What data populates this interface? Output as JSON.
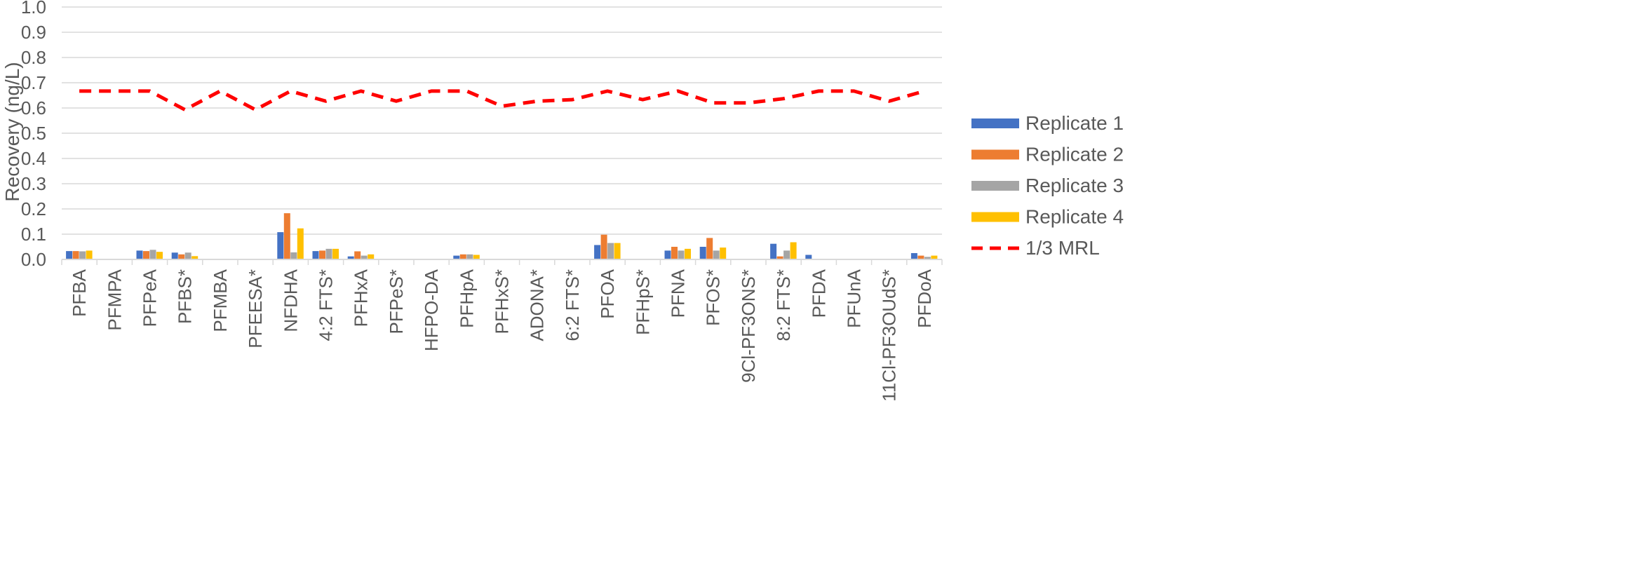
{
  "chart_data": {
    "type": "bar",
    "title": "",
    "xlabel": "",
    "ylabel": "Recovery (ng/L)",
    "ylim": [
      0,
      1.0
    ],
    "yticks": [
      "0.0",
      "0.1",
      "0.2",
      "0.3",
      "0.4",
      "0.5",
      "0.6",
      "0.7",
      "0.8",
      "0.9",
      "1.0"
    ],
    "grid": true,
    "legend_position": "right",
    "categories": [
      "PFBA",
      "PFMPA",
      "PFPeA",
      "PFBS*",
      "PFMBA",
      "PFEESA*",
      "NFDHA",
      "4:2 FTS*",
      "PFHxA",
      "PFPeS*",
      "HFPO-DA",
      "PFHpA",
      "PFHxS*",
      "ADONA*",
      "6:2 FTS*",
      "PFOA",
      "PFHpS*",
      "PFNA",
      "PFOS*",
      "9Cl-PF3ONS*",
      "8:2 FTS*",
      "PFDA",
      "PFUnA",
      "11Cl-PF3OUdS*",
      "PFDoA"
    ],
    "series": [
      {
        "name": "Replicate 1",
        "color": "#4472C4",
        "values": [
          0.033,
          0,
          0.035,
          0.027,
          0,
          0,
          0.108,
          0.033,
          0.012,
          0,
          0,
          0.015,
          0,
          0,
          0,
          0.057,
          0,
          0.035,
          0.05,
          0,
          0.062,
          0.018,
          0,
          0,
          0.025
        ]
      },
      {
        "name": "Replicate 2",
        "color": "#ED7D31",
        "values": [
          0.033,
          0,
          0.033,
          0.02,
          0,
          0,
          0.183,
          0.035,
          0.032,
          0,
          0,
          0.02,
          0,
          0,
          0,
          0.098,
          0,
          0.05,
          0.085,
          0,
          0.012,
          0,
          0,
          0,
          0.015
        ]
      },
      {
        "name": "Replicate 3",
        "color": "#A5A5A5",
        "values": [
          0.032,
          0,
          0.038,
          0.027,
          0,
          0,
          0.028,
          0.042,
          0.015,
          0,
          0,
          0.02,
          0,
          0,
          0,
          0.065,
          0,
          0.035,
          0.035,
          0,
          0.035,
          0,
          0,
          0,
          0.01
        ]
      },
      {
        "name": "Replicate 4",
        "color": "#FFC000",
        "values": [
          0.035,
          0,
          0.03,
          0.013,
          0,
          0,
          0.123,
          0.042,
          0.02,
          0,
          0,
          0.018,
          0,
          0,
          0,
          0.065,
          0,
          0.042,
          0.047,
          0,
          0.068,
          0,
          0,
          0,
          0.015
        ]
      }
    ],
    "line_series": {
      "name": "1/3 MRL",
      "color": "#FF0000",
      "style": "dashed",
      "values": [
        0.667,
        0.667,
        0.667,
        0.593,
        0.667,
        0.593,
        0.667,
        0.627,
        0.667,
        0.627,
        0.667,
        0.667,
        0.607,
        0.627,
        0.633,
        0.667,
        0.633,
        0.667,
        0.62,
        0.62,
        0.637,
        0.667,
        0.667,
        0.627,
        0.667
      ]
    }
  }
}
